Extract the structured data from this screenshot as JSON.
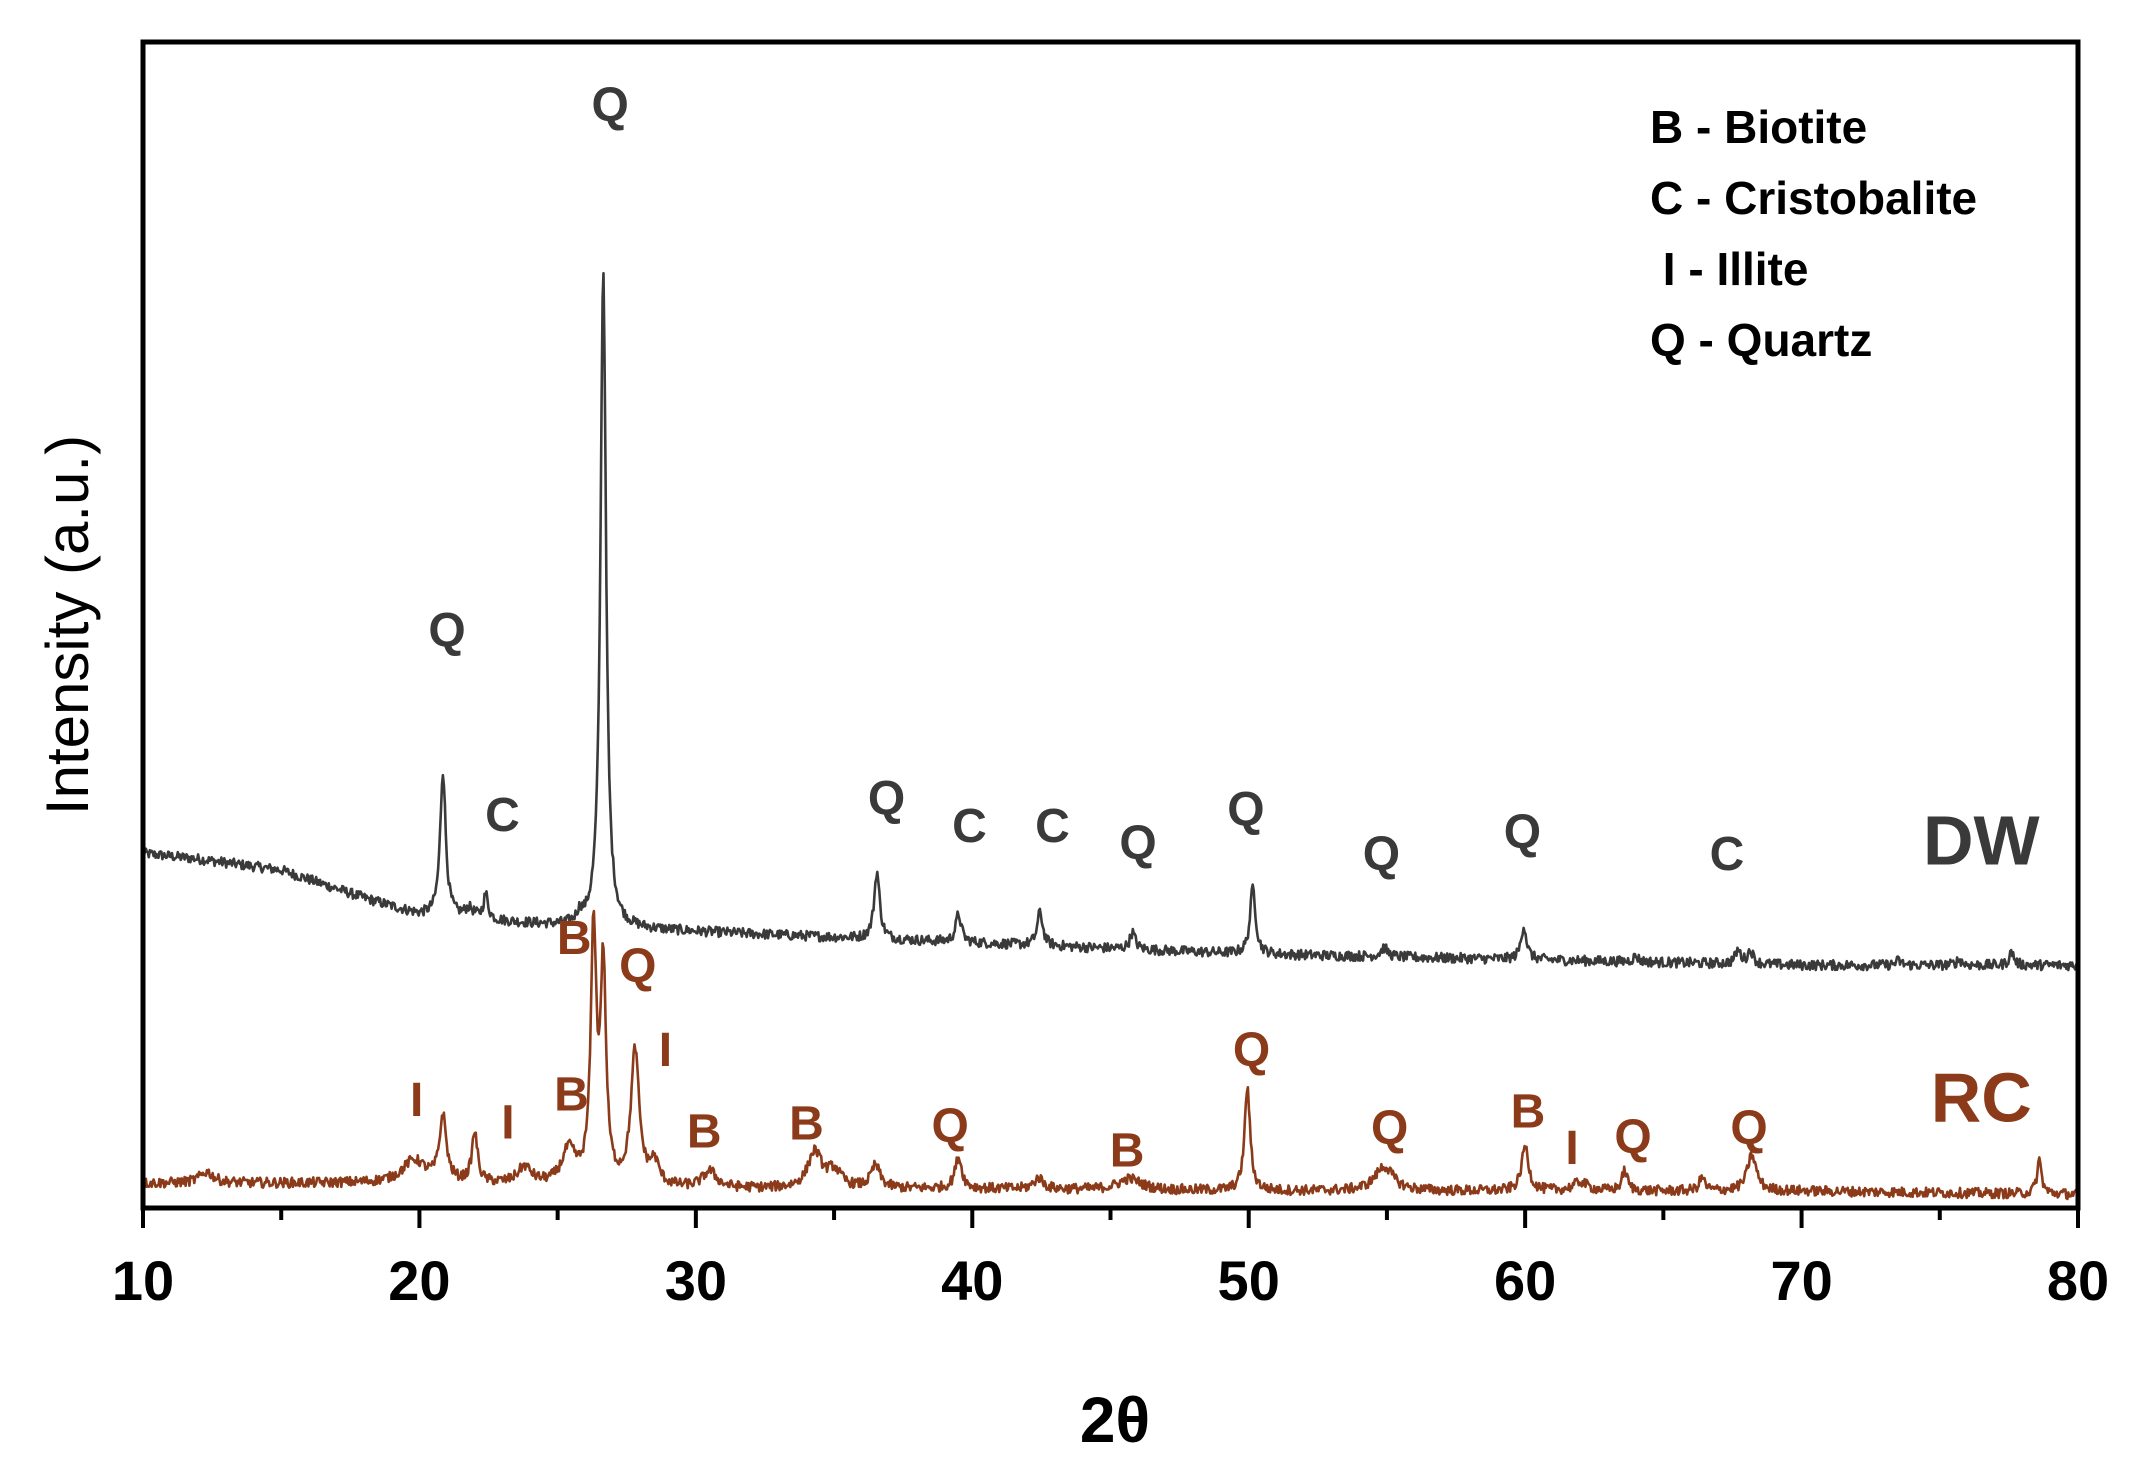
{
  "chart_data": {
    "type": "line",
    "xlabel": "2θ",
    "ylabel": "Intensity (a.u.)",
    "xlim": [
      10,
      80
    ],
    "ylim": [
      0,
      10
    ],
    "x_ticks": [
      "10",
      "20",
      "30",
      "40",
      "50",
      "60",
      "70",
      "80"
    ],
    "grid": false,
    "legend_position": "top-right",
    "legend": [
      "B - Biotite",
      "C - Cristobalite",
      " I - Illite",
      "Q - Quartz"
    ],
    "series": [
      {
        "name": "DW",
        "color": "#3a3a3a",
        "baseline": [
          [
            10,
            3.1
          ],
          [
            12,
            3.05
          ],
          [
            15,
            2.95
          ],
          [
            18,
            2.7
          ],
          [
            20,
            2.55
          ],
          [
            25,
            2.45
          ],
          [
            30,
            2.4
          ],
          [
            40,
            2.3
          ],
          [
            50,
            2.2
          ],
          [
            60,
            2.15
          ],
          [
            70,
            2.1
          ],
          [
            80,
            2.1
          ]
        ],
        "peaks": [
          {
            "x": 20.85,
            "h": 1.3,
            "w": 0.12
          },
          {
            "x": 21.8,
            "h": 0.08,
            "w": 0.2
          },
          {
            "x": 22.4,
            "h": 0.22,
            "w": 0.1
          },
          {
            "x": 25.8,
            "h": 0.08,
            "w": 0.12
          },
          {
            "x": 26.65,
            "h": 5.9,
            "w": 0.12
          },
          {
            "x": 36.55,
            "h": 0.6,
            "w": 0.12
          },
          {
            "x": 39.5,
            "h": 0.25,
            "w": 0.12
          },
          {
            "x": 42.45,
            "h": 0.3,
            "w": 0.12
          },
          {
            "x": 45.8,
            "h": 0.15,
            "w": 0.12
          },
          {
            "x": 50.15,
            "h": 0.6,
            "w": 0.12
          },
          {
            "x": 54.9,
            "h": 0.08,
            "w": 0.15
          },
          {
            "x": 59.95,
            "h": 0.3,
            "w": 0.12
          },
          {
            "x": 64.0,
            "h": 0.05,
            "w": 0.12
          },
          {
            "x": 67.7,
            "h": 0.12,
            "w": 0.12
          },
          {
            "x": 68.15,
            "h": 0.12,
            "w": 0.12
          },
          {
            "x": 73.5,
            "h": 0.04,
            "w": 0.12
          },
          {
            "x": 75.7,
            "h": 0.05,
            "w": 0.12
          },
          {
            "x": 77.6,
            "h": 0.12,
            "w": 0.1
          }
        ],
        "peak_labels": [
          {
            "text": "Q",
            "x": 21.0,
            "y": 4.95
          },
          {
            "text": "C",
            "x": 23.0,
            "y": 3.3
          },
          {
            "text": "Q",
            "x": 26.9,
            "y": 9.65
          },
          {
            "text": "Q",
            "x": 36.9,
            "y": 3.45
          },
          {
            "text": "C",
            "x": 39.9,
            "y": 3.2
          },
          {
            "text": "C",
            "x": 42.9,
            "y": 3.2
          },
          {
            "text": "Q",
            "x": 46.0,
            "y": 3.05
          },
          {
            "text": "Q",
            "x": 49.9,
            "y": 3.35
          },
          {
            "text": "Q",
            "x": 54.8,
            "y": 2.95
          },
          {
            "text": "Q",
            "x": 59.9,
            "y": 3.15
          },
          {
            "text": "C",
            "x": 67.3,
            "y": 2.95
          }
        ],
        "series_label": {
          "text": "DW",
          "x": 76.5,
          "y": 3.0
        }
      },
      {
        "name": "RC",
        "color": "#8b3a1a",
        "baseline": [
          [
            10,
            0.15
          ],
          [
            20,
            0.15
          ],
          [
            30,
            0.1
          ],
          [
            40,
            0.1
          ],
          [
            50,
            0.08
          ],
          [
            60,
            0.08
          ],
          [
            70,
            0.08
          ],
          [
            80,
            0.05
          ]
        ],
        "peaks": [
          {
            "x": 12.3,
            "h": 0.1,
            "w": 0.3
          },
          {
            "x": 19.8,
            "h": 0.2,
            "w": 0.5
          },
          {
            "x": 20.85,
            "h": 0.58,
            "w": 0.15
          },
          {
            "x": 22.0,
            "h": 0.45,
            "w": 0.12
          },
          {
            "x": 23.8,
            "h": 0.15,
            "w": 0.3
          },
          {
            "x": 25.4,
            "h": 0.3,
            "w": 0.3
          },
          {
            "x": 26.3,
            "h": 2.25,
            "w": 0.12
          },
          {
            "x": 26.65,
            "h": 1.9,
            "w": 0.12
          },
          {
            "x": 27.8,
            "h": 1.2,
            "w": 0.18
          },
          {
            "x": 28.5,
            "h": 0.2,
            "w": 0.2
          },
          {
            "x": 30.5,
            "h": 0.15,
            "w": 0.3
          },
          {
            "x": 34.3,
            "h": 0.32,
            "w": 0.3
          },
          {
            "x": 35.0,
            "h": 0.15,
            "w": 0.3
          },
          {
            "x": 36.5,
            "h": 0.2,
            "w": 0.2
          },
          {
            "x": 39.5,
            "h": 0.28,
            "w": 0.15
          },
          {
            "x": 42.4,
            "h": 0.1,
            "w": 0.2
          },
          {
            "x": 45.7,
            "h": 0.1,
            "w": 0.5
          },
          {
            "x": 49.95,
            "h": 0.92,
            "w": 0.12
          },
          {
            "x": 54.9,
            "h": 0.22,
            "w": 0.4
          },
          {
            "x": 60.0,
            "h": 0.4,
            "w": 0.15
          },
          {
            "x": 62.0,
            "h": 0.08,
            "w": 0.3
          },
          {
            "x": 63.6,
            "h": 0.18,
            "w": 0.12
          },
          {
            "x": 66.4,
            "h": 0.12,
            "w": 0.12
          },
          {
            "x": 68.2,
            "h": 0.32,
            "w": 0.2
          },
          {
            "x": 78.6,
            "h": 0.3,
            "w": 0.1
          }
        ],
        "peak_labels": [
          {
            "text": "B",
            "x": 25.6,
            "y": 2.2
          },
          {
            "text": "Q",
            "x": 27.9,
            "y": 1.95
          },
          {
            "text": "I",
            "x": 19.9,
            "y": 0.75
          },
          {
            "text": "I",
            "x": 23.2,
            "y": 0.55
          },
          {
            "text": "B",
            "x": 25.5,
            "y": 0.8
          },
          {
            "text": "I",
            "x": 28.9,
            "y": 1.2
          },
          {
            "text": "B",
            "x": 30.3,
            "y": 0.47
          },
          {
            "text": "B",
            "x": 34.0,
            "y": 0.54
          },
          {
            "text": "Q",
            "x": 39.2,
            "y": 0.52
          },
          {
            "text": "B",
            "x": 45.6,
            "y": 0.3
          },
          {
            "text": "Q",
            "x": 50.1,
            "y": 1.2
          },
          {
            "text": "Q",
            "x": 55.1,
            "y": 0.5
          },
          {
            "text": "B",
            "x": 60.1,
            "y": 0.65
          },
          {
            "text": "I",
            "x": 61.7,
            "y": 0.32
          },
          {
            "text": "Q",
            "x": 63.9,
            "y": 0.42
          },
          {
            "text": "Q",
            "x": 68.1,
            "y": 0.5
          }
        ],
        "series_label": {
          "text": "RC",
          "x": 76.5,
          "y": 0.7
        }
      }
    ]
  }
}
